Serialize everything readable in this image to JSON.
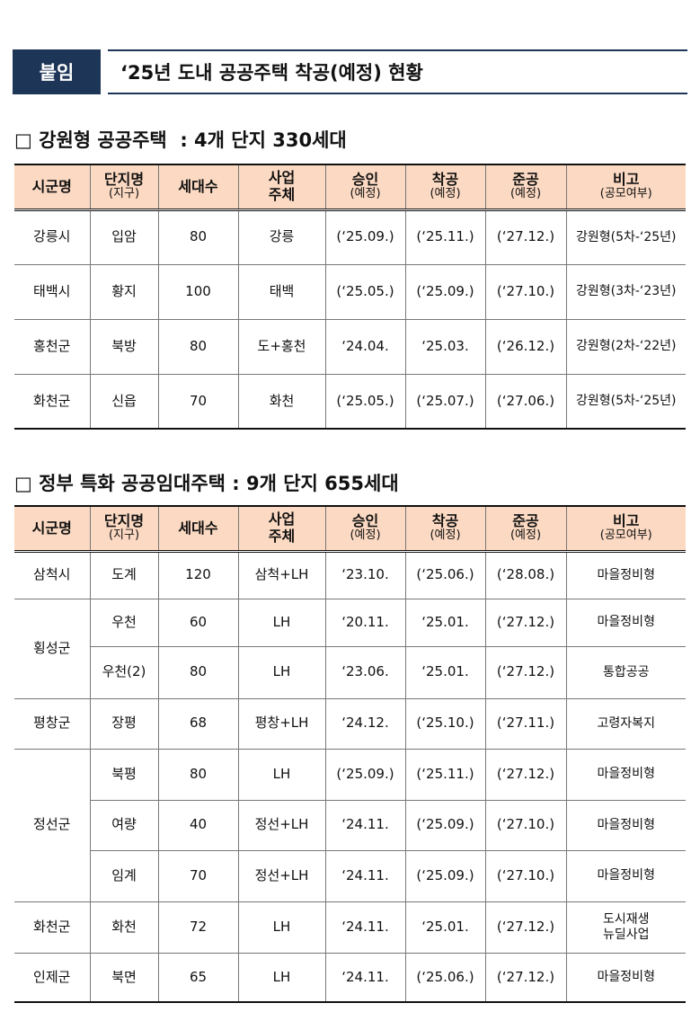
{
  "header": {
    "badge": "붙임",
    "title": "‘25년 도내 공공주택 착공(예정) 현황"
  },
  "sections": [
    {
      "title": "□ 강원형 공공주택  : 4개 단지 330세대",
      "headers": [
        {
          "lines": [
            "시군명"
          ]
        },
        {
          "lines": [
            "단지명"
          ],
          "sub": "(지구)"
        },
        {
          "lines": [
            "세대수"
          ]
        },
        {
          "lines": [
            "사업",
            "주체"
          ]
        },
        {
          "lines": [
            "승인"
          ],
          "sub": "(예정)"
        },
        {
          "lines": [
            "착공"
          ],
          "sub": "(예정)"
        },
        {
          "lines": [
            "준공"
          ],
          "sub": "(예정)"
        },
        {
          "lines": [
            "비고"
          ],
          "sub": "(공모여부)"
        }
      ],
      "groups": [
        {
          "city": "강릉시",
          "rows": [
            [
              "입암",
              80,
              "강릉",
              "(‘25.09.)",
              "(‘25.11.)",
              "(‘27.12.)",
              "강원형(5차-‘25년)"
            ]
          ]
        },
        {
          "city": "태백시",
          "rows": [
            [
              "황지",
              100,
              "태백",
              "(‘25.05.)",
              "(‘25.09.)",
              "(‘27.10.)",
              "강원형(3차-‘23년)"
            ]
          ]
        },
        {
          "city": "홍천군",
          "rows": [
            [
              "북방",
              80,
              "도+홍천",
              "‘24.04.",
              "‘25.03.",
              "(‘26.12.)",
              "강원형(2차-‘22년)"
            ]
          ]
        },
        {
          "city": "화천군",
          "rows": [
            [
              "신읍",
              70,
              "화천",
              "(‘25.05.)",
              "(‘25.07.)",
              "(‘27.06.)",
              "강원형(5차-‘25년)"
            ]
          ]
        }
      ]
    },
    {
      "title": "□ 정부 특화 공공임대주택 : 9개 단지 655세대",
      "headers": [
        {
          "lines": [
            "시군명"
          ]
        },
        {
          "lines": [
            "단지명"
          ],
          "sub": "(지구)"
        },
        {
          "lines": [
            "세대수"
          ]
        },
        {
          "lines": [
            "사업",
            "주체"
          ]
        },
        {
          "lines": [
            "승인"
          ],
          "sub": "(예정)"
        },
        {
          "lines": [
            "착공"
          ],
          "sub": "(예정)"
        },
        {
          "lines": [
            "준공"
          ],
          "sub": "(예정)"
        },
        {
          "lines": [
            "비고"
          ],
          "sub": "(공모여부)"
        }
      ],
      "groups": [
        {
          "city": "삼척시",
          "rows": [
            [
              "도계",
              120,
              "삼척+LH",
              "‘23.10.",
              "(‘25.06.)",
              "(‘28.08.)",
              "마을정비형"
            ]
          ]
        },
        {
          "city": "횡성군",
          "rows": [
            [
              "우천",
              60,
              "LH",
              "‘20.11.",
              "‘25.01.",
              "(‘27.12.)",
              "마을정비형"
            ],
            [
              "우천(2)",
              80,
              "LH",
              "‘23.06.",
              "‘25.01.",
              "(‘27.12.)",
              "통합공공"
            ]
          ]
        },
        {
          "city": "평창군",
          "rows": [
            [
              "장평",
              68,
              "평창+LH",
              "‘24.12.",
              "(‘25.10.)",
              "(‘27.11.)",
              "고령자복지"
            ]
          ]
        },
        {
          "city": "정선군",
          "rows": [
            [
              "북평",
              80,
              "LH",
              "(‘25.09.)",
              "(‘25.11.)",
              "(‘27.12.)",
              "마을정비형"
            ],
            [
              "여량",
              40,
              "정선+LH",
              "‘24.11.",
              "(‘25.09.)",
              "(‘27.10.)",
              "마을정비형"
            ],
            [
              "임계",
              70,
              "정선+LH",
              "‘24.11.",
              "(‘25.09.)",
              "(‘27.10.)",
              "마을정비형"
            ]
          ]
        },
        {
          "city": "화천군",
          "rows": [
            [
              "화천",
              72,
              "LH",
              "‘24.11.",
              "‘25.01.",
              "(‘27.12.)",
              "도시재생\n뉴딜사업"
            ]
          ]
        },
        {
          "city": "인제군",
          "rows": [
            [
              "북면",
              65,
              "LH",
              "‘24.11.",
              "(‘25.06.)",
              "(‘27.12.)",
              "마을정비형"
            ]
          ]
        }
      ]
    }
  ]
}
